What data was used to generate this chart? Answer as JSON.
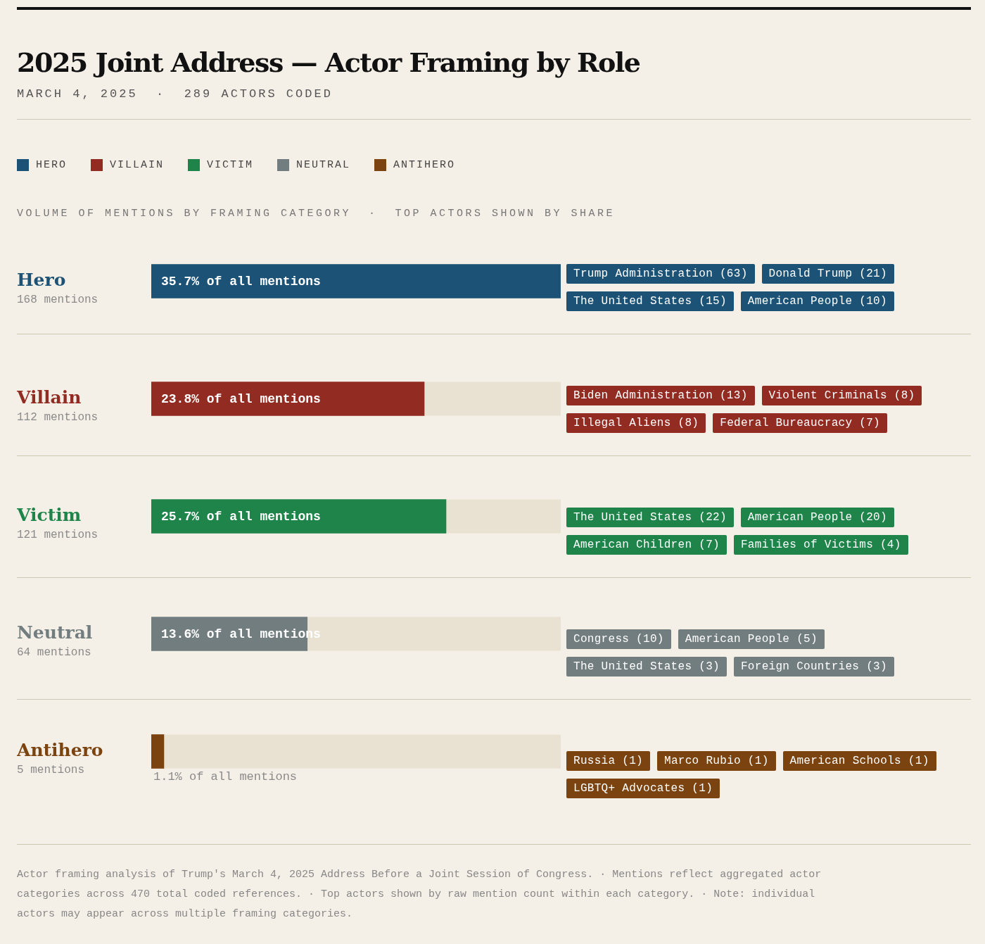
{
  "chart_data": {
    "type": "bar",
    "orientation": "horizontal",
    "stacked": true,
    "title": "2025 Joint Address — Actor Framing by Role",
    "subtitle": "MARCH 4, 2025  ·  289 ACTORS CODED",
    "legend": "top left",
    "tick_labels": "y",
    "categories": [
      "Hero",
      "Villain",
      "Victim",
      "Neutral",
      "Antihero"
    ],
    "series": [
      {
        "name": "HERO",
        "color": "#1b5276",
        "values": [
          35.7,
          null,
          null,
          null,
          null
        ],
        "value_labels": [
          "35.7% of all mentions",
          null,
          null,
          null,
          null
        ]
      },
      {
        "name": "VILLAIN",
        "color": "#922b21",
        "values": [
          null,
          23.8,
          null,
          null,
          null
        ],
        "value_labels": [
          null,
          "23.8% of all mentions",
          null,
          null,
          null
        ]
      },
      {
        "name": "VICTIM",
        "color": "#1e8449",
        "values": [
          null,
          null,
          25.7,
          null,
          null
        ],
        "value_labels": [
          null,
          null,
          "25.7% of all mentions",
          null,
          null
        ]
      },
      {
        "name": "NEUTRAL",
        "color": "#717d7e",
        "values": [
          null,
          null,
          null,
          13.6,
          null
        ],
        "value_labels": [
          null,
          null,
          null,
          "13.6% of all mentions",
          null
        ]
      },
      {
        "name": "ANTIHERO",
        "color": "#7b4310",
        "values": [
          null,
          null,
          null,
          null,
          1.1
        ],
        "value_labels": [
          null,
          null,
          null,
          null,
          "1.1% of all mentions"
        ]
      }
    ],
    "annotations": [
      "VOLUME OF MENTIONS BY FRAMING CATEGORY  ·  TOP ACTORS SHOWN BY SHARE",
      "168 mentions",
      "Trump Administration (63)",
      "Donald Trump (21)",
      "The United States (15)",
      "American People (10)",
      "112 mentions",
      "Biden Administration (13)",
      "Violent Criminals (8)",
      "Illegal Aliens (8)",
      "Federal Bureaucracy (7)",
      "121 mentions",
      "The United States (22)",
      "American People (20)",
      "American Children (7)",
      "Families of Victims (4)",
      "64 mentions",
      "Congress (10)",
      "American People (5)",
      "The United States (3)",
      "Foreign Countries (3)",
      "5 mentions",
      "Russia (1)",
      "Marco Rubio (1)",
      "American Schools (1)",
      "LGBTQ+ Advocates (1)",
      "Actor framing analysis of Trump's March 4, 2025 Address Before a Joint Session of Congress.  ·  Mentions reflect aggregated actor categories across 470 total coded references.  ·  Top actors shown by raw mention count within each category.  ·  Note: individual actors may appear across multiple framing categories."
    ]
  }
}
